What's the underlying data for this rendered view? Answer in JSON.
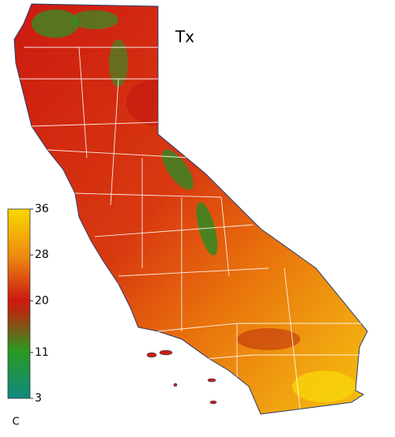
{
  "title": "Tx",
  "colorbar": {
    "unit": "C",
    "range": [
      3,
      36
    ],
    "ticks": [
      36,
      28,
      20,
      11,
      3
    ]
  }
}
